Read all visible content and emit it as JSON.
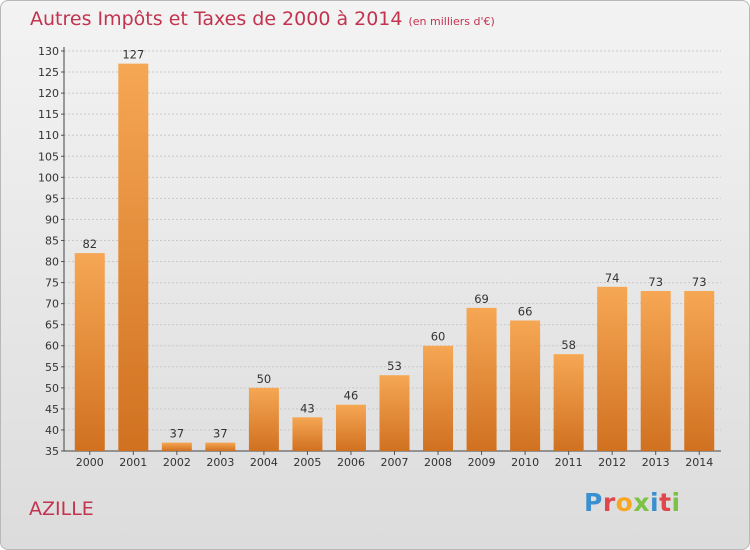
{
  "header": {
    "title": "Autres Impôts et Taxes de 2000 à 2014",
    "subtitle": "(en milliers d'€)"
  },
  "footer": {
    "commune": "AZILLE",
    "brand": "Proxiti"
  },
  "colors": {
    "title": "#c2334f",
    "bar_light": "#f6a754",
    "bar_dark": "#d07120",
    "brand_letters": [
      "#3a8fd0",
      "#e0474c",
      "#f5a623",
      "#7cc244",
      "#3a8fd0",
      "#e0474c",
      "#7cc244"
    ]
  },
  "chart_data": {
    "type": "bar",
    "title": "Autres Impôts et Taxes de 2000 à 2014",
    "subtitle": "(en milliers d'€)",
    "xlabel": "",
    "ylabel": "",
    "categories": [
      "2000",
      "2001",
      "2002",
      "2003",
      "2004",
      "2005",
      "2006",
      "2007",
      "2008",
      "2009",
      "2010",
      "2011",
      "2012",
      "2013",
      "2014"
    ],
    "values": [
      82,
      127,
      37,
      37,
      50,
      43,
      46,
      53,
      60,
      69,
      66,
      58,
      74,
      73,
      73
    ],
    "ylim": [
      35,
      130
    ],
    "ytick_step": 5,
    "grid": true,
    "legend": "none"
  }
}
